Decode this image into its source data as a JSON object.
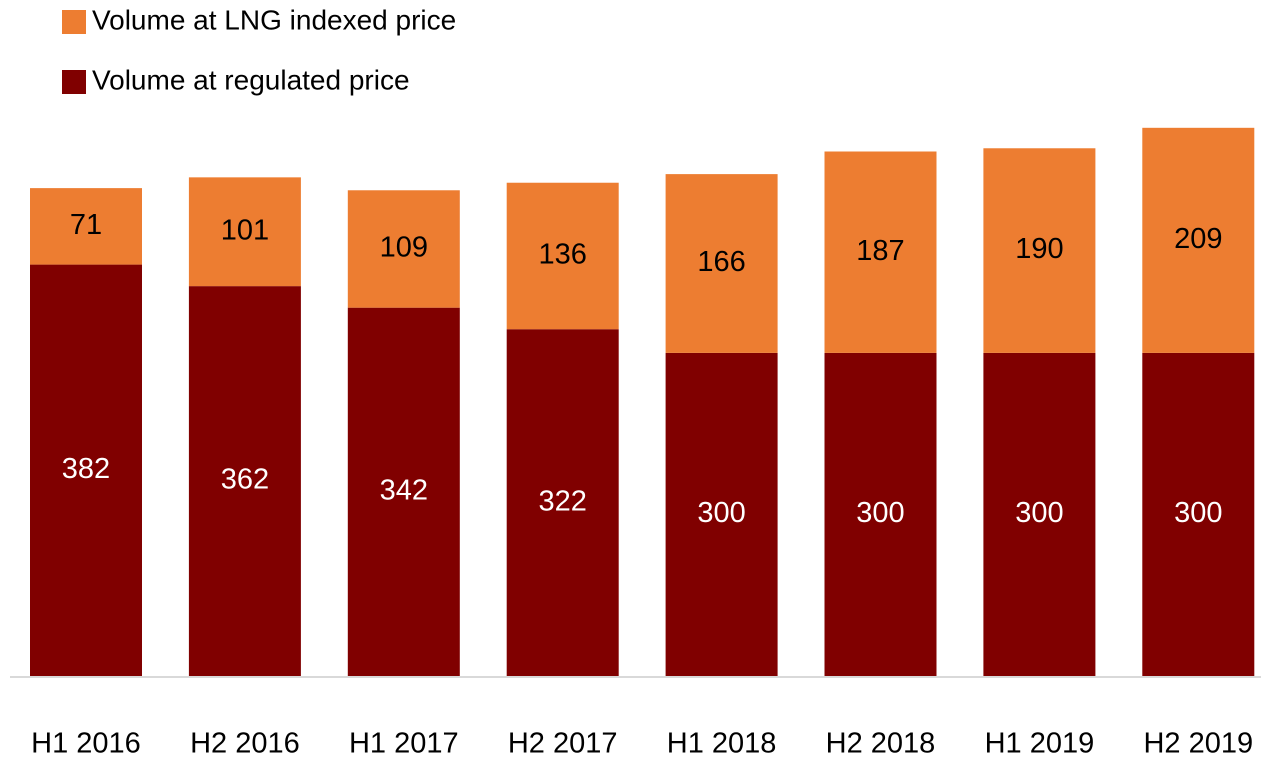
{
  "chart_data": {
    "type": "stacked_bar",
    "categories": [
      "H1 2016",
      "H2 2016",
      "H1 2017",
      "H2 2017",
      "H1 2018",
      "H2 2018",
      "H1 2019",
      "H2 2019"
    ],
    "series": [
      {
        "name": "Volume at LNG indexed price",
        "color": "#ed7d31",
        "values": [
          71,
          101,
          109,
          136,
          166,
          187,
          190,
          209
        ]
      },
      {
        "name": "Volume at regulated price",
        "color": "#800000",
        "values": [
          382,
          362,
          342,
          322,
          300,
          300,
          300,
          300
        ]
      }
    ]
  }
}
